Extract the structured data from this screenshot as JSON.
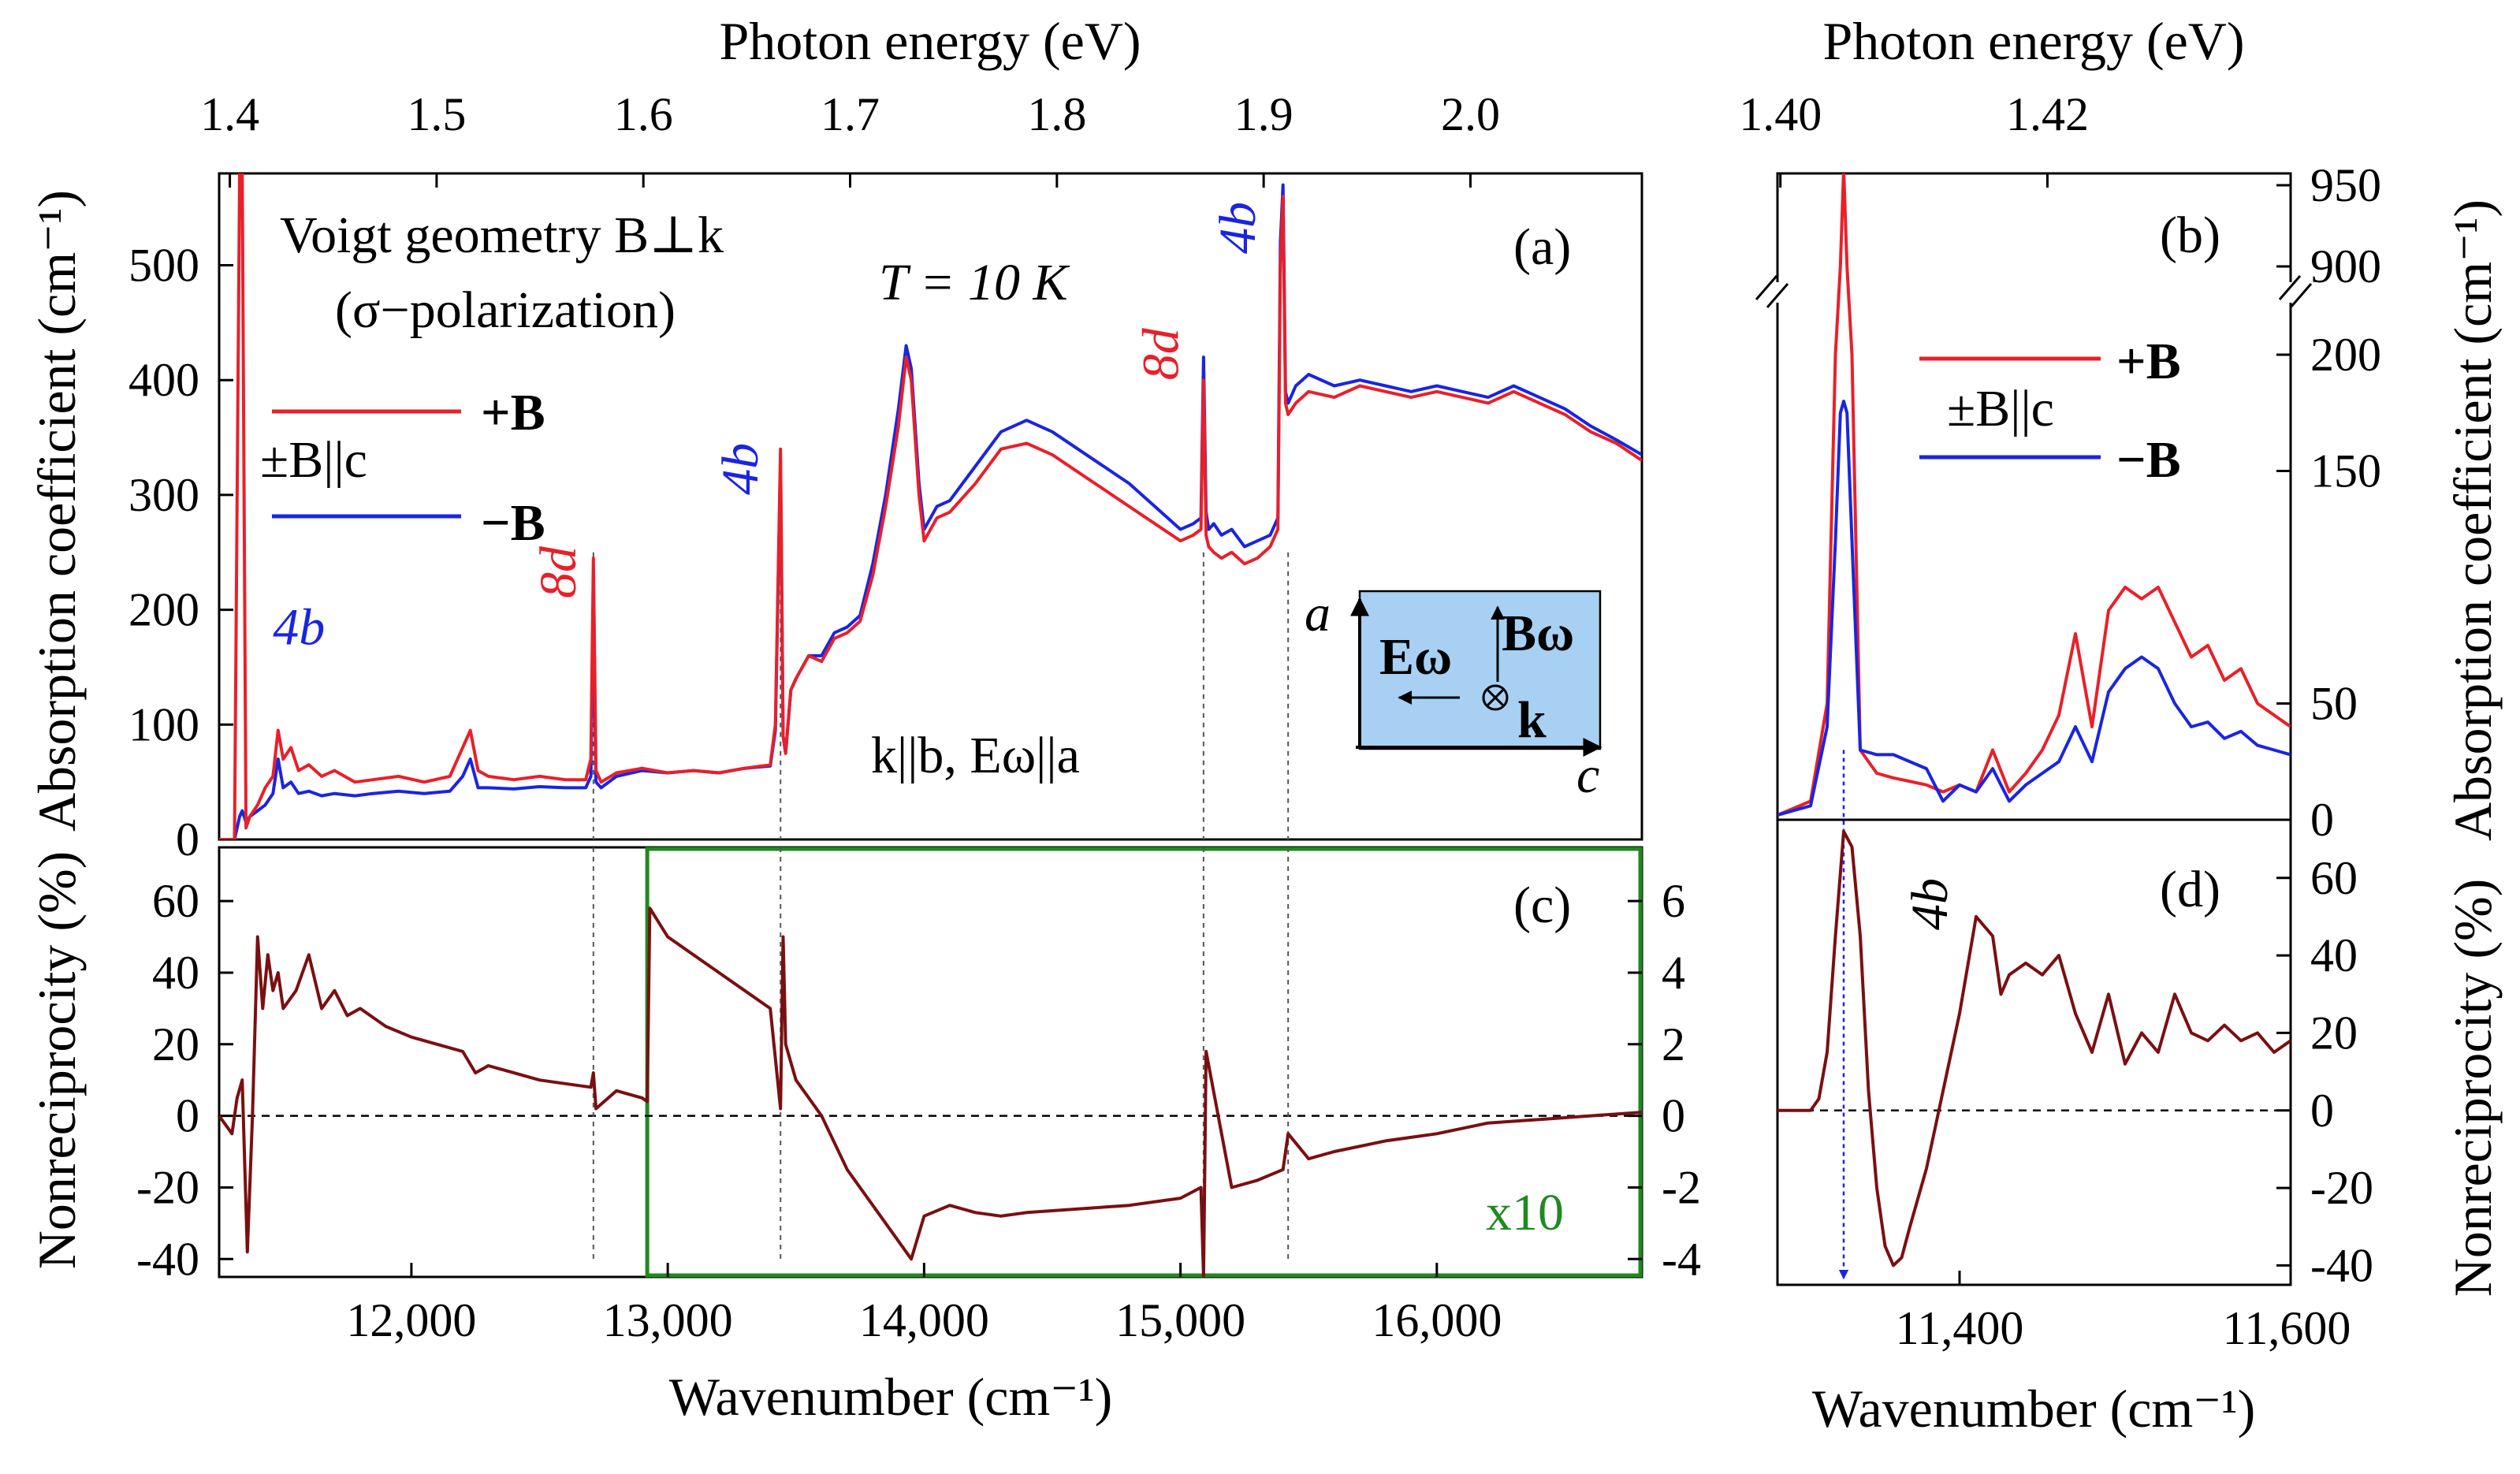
{
  "chart_data": [
    {
      "panel": "a",
      "type": "line",
      "panel_label": "(a)",
      "title": "Voigt geometry B⊥k",
      "subtitle": "(σ−polarization)",
      "temperature": "T = 10 K",
      "top_axis_label": "Photon energy (eV)",
      "top_ticks": [
        "1.4",
        "1.5",
        "1.6",
        "1.7",
        "1.8",
        "1.9",
        "2.0"
      ],
      "top_tick_values": [
        1.4,
        1.5,
        1.6,
        1.7,
        1.8,
        1.9,
        2.0
      ],
      "ylabel": "Absorption coefficient (cm⁻¹)",
      "y_ticks": [
        "0",
        "100",
        "200",
        "300",
        "400",
        "500"
      ],
      "y_tick_values": [
        0,
        100,
        200,
        300,
        400,
        500
      ],
      "ylim": [
        0,
        580
      ],
      "xlim": [
        11250,
        16800
      ],
      "legend_title": "±B||c",
      "legend": [
        "+B",
        "−B"
      ],
      "polarization_label": "k||b, Eω||a",
      "inset": {
        "axis_vertical": "a",
        "axis_horizontal": "c",
        "field_E": "Eω",
        "field_B": "Bω",
        "wavevector": "k"
      },
      "series": [
        {
          "name": "+B",
          "color": "#e8202a",
          "x": [
            11250,
            11310,
            11330,
            11340,
            11355,
            11370,
            11400,
            11430,
            11460,
            11480,
            11500,
            11530,
            11560,
            11600,
            11650,
            11700,
            11780,
            11850,
            11950,
            12050,
            12150,
            12200,
            12230,
            12260,
            12300,
            12400,
            12500,
            12600,
            12680,
            12700,
            12710,
            12720,
            12740,
            12800,
            12900,
            13000,
            13100,
            13200,
            13300,
            13400,
            13420,
            13440,
            13450,
            13460,
            13480,
            13500,
            13550,
            13600,
            13650,
            13700,
            13750,
            13800,
            13850,
            13900,
            13930,
            13950,
            13980,
            14000,
            14050,
            14100,
            14200,
            14300,
            14400,
            14500,
            14600,
            14700,
            14800,
            14900,
            15000,
            15050,
            15080,
            15090,
            15100,
            15110,
            15130,
            15160,
            15200,
            15250,
            15300,
            15350,
            15380,
            15390,
            15400,
            15410,
            15420,
            15450,
            15500,
            15600,
            15700,
            15800,
            15900,
            16000,
            16100,
            16200,
            16300,
            16400,
            16500,
            16600,
            16700,
            16800
          ],
          "y": [
            0,
            0,
            580,
            580,
            10,
            20,
            30,
            45,
            55,
            95,
            70,
            80,
            60,
            65,
            55,
            60,
            50,
            52,
            55,
            50,
            55,
            80,
            95,
            60,
            55,
            52,
            55,
            52,
            52,
            70,
            245,
            60,
            50,
            58,
            62,
            58,
            60,
            58,
            62,
            65,
            100,
            340,
            90,
            75,
            130,
            140,
            160,
            155,
            175,
            180,
            190,
            230,
            290,
            360,
            420,
            400,
            300,
            260,
            280,
            285,
            310,
            340,
            345,
            335,
            320,
            305,
            290,
            275,
            260,
            265,
            270,
            400,
            265,
            255,
            250,
            245,
            250,
            240,
            245,
            255,
            270,
            500,
            560,
            380,
            370,
            380,
            390,
            385,
            395,
            390,
            385,
            390,
            385,
            380,
            390,
            380,
            370,
            355,
            345,
            330
          ]
        },
        {
          "name": "−B",
          "color": "#1a25e0",
          "x": [
            11250,
            11310,
            11330,
            11340,
            11355,
            11370,
            11400,
            11430,
            11460,
            11480,
            11500,
            11530,
            11560,
            11600,
            11650,
            11700,
            11780,
            11850,
            11950,
            12050,
            12150,
            12200,
            12230,
            12260,
            12300,
            12400,
            12500,
            12600,
            12680,
            12700,
            12710,
            12720,
            12740,
            12800,
            12900,
            13000,
            13100,
            13200,
            13300,
            13400,
            13420,
            13440,
            13450,
            13460,
            13480,
            13500,
            13550,
            13600,
            13650,
            13700,
            13750,
            13800,
            13850,
            13900,
            13930,
            13950,
            13980,
            14000,
            14050,
            14100,
            14200,
            14300,
            14400,
            14500,
            14600,
            14700,
            14800,
            14900,
            15000,
            15050,
            15080,
            15090,
            15100,
            15110,
            15130,
            15160,
            15200,
            15250,
            15300,
            15350,
            15380,
            15390,
            15400,
            15410,
            15420,
            15450,
            15500,
            15600,
            15700,
            15800,
            15900,
            16000,
            16100,
            16200,
            16300,
            16400,
            16500,
            16600,
            16700,
            16800
          ],
          "y": [
            0,
            0,
            20,
            25,
            15,
            20,
            25,
            30,
            40,
            70,
            45,
            50,
            40,
            42,
            38,
            40,
            38,
            40,
            42,
            40,
            42,
            55,
            70,
            45,
            45,
            44,
            46,
            45,
            45,
            55,
            200,
            50,
            45,
            55,
            60,
            58,
            60,
            58,
            62,
            64,
            95,
            330,
            90,
            75,
            130,
            140,
            160,
            160,
            180,
            185,
            195,
            240,
            300,
            375,
            430,
            410,
            310,
            270,
            290,
            295,
            325,
            355,
            365,
            355,
            340,
            325,
            310,
            290,
            270,
            275,
            280,
            420,
            285,
            270,
            275,
            265,
            270,
            255,
            260,
            265,
            280,
            520,
            570,
            390,
            380,
            395,
            405,
            395,
            400,
            395,
            390,
            395,
            390,
            385,
            395,
            385,
            375,
            360,
            348,
            335
          ]
        }
      ],
      "annotations": [
        {
          "text": "4b",
          "color": "#1a25e0",
          "x": 11460,
          "y": 170
        },
        {
          "text": "8d",
          "color": "#e8202a",
          "x": 12640,
          "y": 210,
          "rotated": true
        },
        {
          "text": "4b",
          "color": "#1a25e0",
          "x": 13350,
          "y": 300,
          "rotated": true
        },
        {
          "text": "8d",
          "color": "#e8202a",
          "x": 14990,
          "y": 400,
          "rotated": true
        },
        {
          "text": "4b",
          "color": "#1a25e0",
          "x": 15290,
          "y": 510,
          "rotated": true
        }
      ],
      "guide_lines_x": [
        12710,
        13440,
        15090,
        15420
      ]
    },
    {
      "panel": "b",
      "type": "line",
      "panel_label": "(b)",
      "top_axis_label": "Photon energy (eV)",
      "top_ticks": [
        "1.40",
        "1.42"
      ],
      "top_tick_values": [
        1.4,
        1.42
      ],
      "ylabel": "Absorption coefficient (cm⁻¹)",
      "y_ticks": [
        "0",
        "50",
        "150",
        "200",
        "900",
        "950"
      ],
      "y_tick_values": [
        0,
        50,
        150,
        200,
        900,
        950
      ],
      "y_axis_break": [
        220,
        880
      ],
      "xlim": [
        11290,
        11600
      ],
      "ylim": [
        0,
        950
      ],
      "legend_title": "±B||c",
      "legend": [
        "+B",
        "−B"
      ],
      "series": [
        {
          "name": "+B",
          "color": "#e8202a",
          "x": [
            11290,
            11310,
            11320,
            11325,
            11328,
            11330,
            11332,
            11335,
            11340,
            11350,
            11360,
            11380,
            11390,
            11400,
            11410,
            11420,
            11430,
            11440,
            11450,
            11460,
            11470,
            11480,
            11490,
            11500,
            11510,
            11520,
            11530,
            11540,
            11550,
            11560,
            11570,
            11580,
            11590,
            11600
          ],
          "y": [
            2,
            8,
            50,
            200,
            900,
            960,
            900,
            200,
            30,
            20,
            18,
            15,
            12,
            15,
            12,
            30,
            12,
            20,
            30,
            45,
            80,
            40,
            90,
            100,
            95,
            100,
            85,
            70,
            75,
            60,
            65,
            50,
            45,
            40
          ]
        },
        {
          "name": "−B",
          "color": "#1a25e0",
          "x": [
            11290,
            11310,
            11320,
            11325,
            11328,
            11330,
            11332,
            11335,
            11340,
            11350,
            11360,
            11380,
            11390,
            11400,
            11410,
            11420,
            11430,
            11440,
            11450,
            11460,
            11470,
            11480,
            11490,
            11500,
            11510,
            11520,
            11530,
            11540,
            11550,
            11560,
            11570,
            11580,
            11590,
            11600
          ],
          "y": [
            2,
            6,
            40,
            120,
            175,
            180,
            175,
            120,
            30,
            28,
            28,
            22,
            8,
            15,
            12,
            22,
            8,
            15,
            20,
            25,
            40,
            25,
            55,
            65,
            70,
            65,
            50,
            40,
            42,
            35,
            38,
            32,
            30,
            28
          ]
        }
      ]
    },
    {
      "panel": "c",
      "type": "line",
      "panel_label": "(c)",
      "xlabel": "Wavenumber (cm⁻¹)",
      "x_ticks": [
        "12,000",
        "13,000",
        "14,000",
        "15,000",
        "16,000"
      ],
      "x_tick_values": [
        12000,
        13000,
        14000,
        15000,
        16000
      ],
      "ylabel": "Nonreciprocity (%)",
      "y_ticks": [
        "60",
        "40",
        "20",
        "0",
        "-20",
        "-40"
      ],
      "y_tick_values": [
        60,
        40,
        20,
        0,
        -20,
        -40
      ],
      "ylim": [
        -45,
        75
      ],
      "xlim": [
        11250,
        16800
      ],
      "right_axis_ticks": [
        "6",
        "4",
        "2",
        "0",
        "-2",
        "-4"
      ],
      "right_axis_tick_values": [
        6,
        4,
        2,
        0,
        -2,
        -4
      ],
      "magnified_region_label": "x10",
      "magnified_region_start": 12920,
      "series": [
        {
          "name": "Nonreciprocity",
          "color": "#7a0f12",
          "x": [
            11250,
            11300,
            11320,
            11340,
            11360,
            11380,
            11400,
            11420,
            11440,
            11460,
            11480,
            11500,
            11550,
            11600,
            11650,
            11700,
            11750,
            11800,
            11900,
            12000,
            12100,
            12200,
            12250,
            12300,
            12400,
            12500,
            12600,
            12700,
            12710,
            12720,
            12800,
            12900,
            12920,
            12930,
            13000,
            13100,
            13200,
            13300,
            13400,
            13440,
            13450,
            13460,
            13500,
            13600,
            13700,
            13800,
            13900,
            13950,
            14000,
            14100,
            14200,
            14300,
            14400,
            14600,
            14800,
            15000,
            15080,
            15090,
            15100,
            15200,
            15300,
            15400,
            15420,
            15500,
            15600,
            15800,
            16000,
            16200,
            16400,
            16600,
            16800
          ],
          "y": [
            0,
            -5,
            5,
            10,
            -38,
            0,
            50,
            30,
            45,
            35,
            40,
            30,
            35,
            45,
            30,
            35,
            28,
            30,
            25,
            22,
            20,
            18,
            12,
            14,
            12,
            10,
            9,
            8,
            12,
            2,
            7,
            5,
            4,
            58,
            50,
            45,
            40,
            35,
            30,
            2,
            50,
            20,
            10,
            0,
            -15,
            -25,
            -35,
            -40,
            -28,
            -25,
            -27,
            -28,
            -27,
            -26,
            -25,
            -23,
            -20,
            -45,
            18,
            -20,
            -18,
            -15,
            -5,
            -12,
            -10,
            -7,
            -5,
            -2,
            -1,
            0,
            1
          ]
        }
      ],
      "guide_lines_x": [
        12710,
        13440,
        15090,
        15420
      ]
    },
    {
      "panel": "d",
      "type": "line",
      "panel_label": "(d)",
      "xlabel": "Wavenumber (cm⁻¹)",
      "x_ticks": [
        "11,400",
        "11,600"
      ],
      "x_tick_values": [
        11400,
        11600
      ],
      "ylabel": "Nonreciprocity (%)",
      "y_ticks": [
        "60",
        "40",
        "20",
        "0",
        "-20",
        "-40"
      ],
      "y_tick_values": [
        60,
        40,
        20,
        0,
        -20,
        -40
      ],
      "ylim": [
        -45,
        75
      ],
      "xlim": [
        11290,
        11600
      ],
      "annotation": "4b",
      "series": [
        {
          "name": "Nonreciprocity",
          "color": "#7a0f12",
          "x": [
            11290,
            11300,
            11310,
            11315,
            11320,
            11325,
            11330,
            11335,
            11340,
            11345,
            11350,
            11355,
            11360,
            11365,
            11370,
            11380,
            11390,
            11400,
            11410,
            11420,
            11425,
            11430,
            11440,
            11450,
            11460,
            11470,
            11480,
            11490,
            11500,
            11510,
            11520,
            11530,
            11540,
            11550,
            11560,
            11570,
            11580,
            11590,
            11600
          ],
          "y": [
            0,
            0,
            0,
            3,
            15,
            45,
            72,
            68,
            45,
            5,
            -20,
            -35,
            -40,
            -38,
            -30,
            -15,
            5,
            25,
            50,
            45,
            30,
            35,
            38,
            35,
            40,
            25,
            15,
            30,
            12,
            20,
            15,
            30,
            20,
            18,
            22,
            18,
            20,
            15,
            18
          ]
        }
      ],
      "peak_marker_x": 11330
    }
  ]
}
